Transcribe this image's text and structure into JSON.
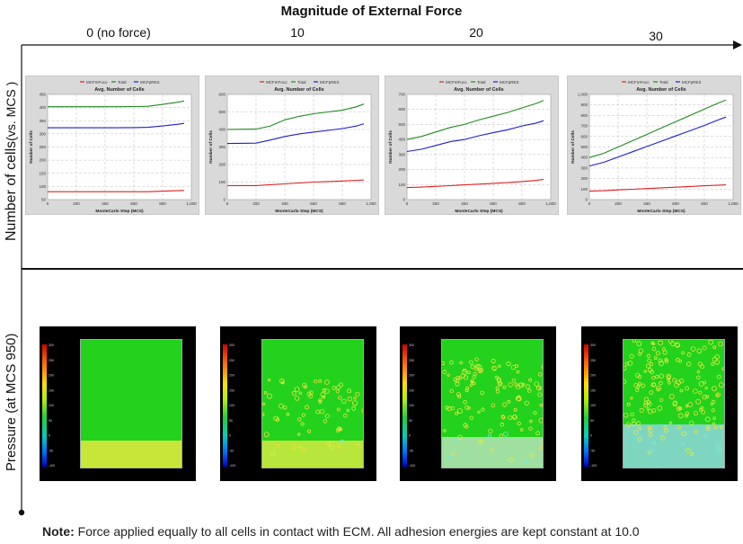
{
  "figure": {
    "title": "Magnitude of External Force",
    "row_labels": {
      "cells_main": "Number of cells",
      "cells_sub": "(vs. MCS )",
      "pressure": "Pressure (at MCS 950)"
    },
    "note_bold": "Note:",
    "note_text": " Force applied equally to all cells in contact with ECM. All adhesion energies are kept constant at 10.0",
    "colors": {
      "medium": "#e02020",
      "total": "#1f8a1f",
      "cells": "#1c1cd6",
      "tissue": "#22d21c"
    }
  },
  "columns": [
    {
      "force_label": "0 (no force)"
    },
    {
      "force_label": "10"
    },
    {
      "force_label": "20"
    },
    {
      "force_label": "30"
    }
  ],
  "chart_data": [
    {
      "type": "line",
      "title": "Avg. Number of Cells",
      "xlabel": "MonteCarlo Step (MCS)",
      "ylabel": "Number of Cells",
      "legend": [
        "MCFmFoco",
        "Total",
        "MCFpRES"
      ],
      "legend_position": "top",
      "xlim": [
        0,
        1000
      ],
      "ylim": [
        50,
        450
      ],
      "xticks": [
        0,
        200,
        400,
        600,
        800,
        1000
      ],
      "yticks": [
        50,
        100,
        150,
        200,
        250,
        300,
        350,
        400,
        450
      ],
      "x": [
        0,
        200,
        400,
        600,
        700,
        800,
        900,
        950
      ],
      "series": [
        {
          "name": "MCFmFoco",
          "values": [
            80,
            80,
            80,
            80,
            80,
            82,
            84,
            85
          ]
        },
        {
          "name": "Total",
          "values": [
            403,
            403,
            403,
            404,
            405,
            412,
            420,
            425
          ]
        },
        {
          "name": "MCFpRES",
          "values": [
            323,
            323,
            323,
            324,
            325,
            330,
            336,
            340
          ]
        }
      ]
    },
    {
      "type": "line",
      "title": "Avg. Number of Cells",
      "xlabel": "MonteCarlo Step (MCS)",
      "ylabel": "Number of Cells",
      "legend": [
        "MCFmFoco",
        "Total",
        "MCFpRES"
      ],
      "legend_position": "top",
      "xlim": [
        0,
        1000
      ],
      "ylim": [
        0,
        600
      ],
      "xticks": [
        0,
        200,
        400,
        600,
        800,
        1000
      ],
      "yticks": [
        0,
        100,
        200,
        300,
        400,
        500,
        600
      ],
      "x": [
        0,
        200,
        300,
        400,
        500,
        600,
        700,
        800,
        900,
        950
      ],
      "series": [
        {
          "name": "MCFmFoco",
          "values": [
            80,
            80,
            85,
            90,
            95,
            100,
            103,
            106,
            110,
            112
          ]
        },
        {
          "name": "Total",
          "values": [
            400,
            402,
            420,
            455,
            475,
            490,
            500,
            510,
            530,
            545
          ]
        },
        {
          "name": "MCFpRES",
          "values": [
            320,
            322,
            340,
            360,
            375,
            385,
            395,
            405,
            420,
            433
          ]
        }
      ]
    },
    {
      "type": "line",
      "title": "Avg. Number of Cells",
      "xlabel": "MonteCarlo Step (MCS)",
      "ylabel": "Number of Cells",
      "legend": [
        "MCFmFoco",
        "Total",
        "MCFpRES"
      ],
      "legend_position": "top",
      "xlim": [
        0,
        1000
      ],
      "ylim": [
        0,
        700
      ],
      "xticks": [
        0,
        200,
        400,
        600,
        800,
        1000
      ],
      "yticks": [
        0,
        100,
        200,
        300,
        400,
        500,
        600,
        700
      ],
      "x": [
        0,
        100,
        200,
        300,
        400,
        500,
        600,
        700,
        800,
        900,
        950
      ],
      "series": [
        {
          "name": "MCFmFoco",
          "values": [
            80,
            83,
            88,
            93,
            98,
            103,
            108,
            113,
            120,
            128,
            135
          ]
        },
        {
          "name": "Total",
          "values": [
            400,
            420,
            450,
            480,
            500,
            530,
            555,
            580,
            610,
            640,
            660
          ]
        },
        {
          "name": "MCFpRES",
          "values": [
            320,
            335,
            360,
            385,
            400,
            425,
            445,
            465,
            490,
            510,
            525
          ]
        }
      ]
    },
    {
      "type": "line",
      "title": "Avg. Number of Cells",
      "xlabel": "MonteCarlo Step (MCS)",
      "ylabel": "Number of Cells",
      "legend": [
        "MCFmFoco",
        "Total",
        "MCFpRES"
      ],
      "legend_position": "top",
      "xlim": [
        0,
        1000
      ],
      "ylim": [
        0,
        1000
      ],
      "xticks": [
        0,
        200,
        400,
        600,
        800,
        1000
      ],
      "yticks": [
        0,
        100,
        200,
        300,
        400,
        500,
        600,
        700,
        800,
        900,
        1000
      ],
      "x": [
        0,
        100,
        200,
        300,
        400,
        500,
        600,
        700,
        800,
        900,
        950
      ],
      "series": [
        {
          "name": "MCFmFoco",
          "values": [
            80,
            85,
            92,
            98,
            105,
            112,
            118,
            125,
            132,
            138,
            140
          ]
        },
        {
          "name": "Total",
          "values": [
            400,
            440,
            500,
            560,
            620,
            680,
            740,
            800,
            860,
            920,
            945
          ]
        },
        {
          "name": "MCFpRES",
          "values": [
            320,
            355,
            405,
            455,
            505,
            555,
            605,
            655,
            705,
            760,
            785
          ]
        }
      ]
    }
  ],
  "pressure_maps": [
    {
      "colorbar_ticks": [
        "300",
        "250",
        "200",
        "150",
        "100",
        "50",
        "0",
        "-50",
        "-100"
      ]
    },
    {
      "colorbar_ticks": [
        "300",
        "250",
        "200",
        "150",
        "100",
        "50",
        "0",
        "-50",
        "-100"
      ]
    },
    {
      "colorbar_ticks": [
        "300",
        "250",
        "200",
        "150",
        "100",
        "50",
        "0",
        "-50",
        "-100"
      ]
    },
    {
      "colorbar_ticks": [
        "300",
        "250",
        "200",
        "150",
        "100",
        "50",
        "0",
        "-50",
        "-100"
      ]
    }
  ]
}
